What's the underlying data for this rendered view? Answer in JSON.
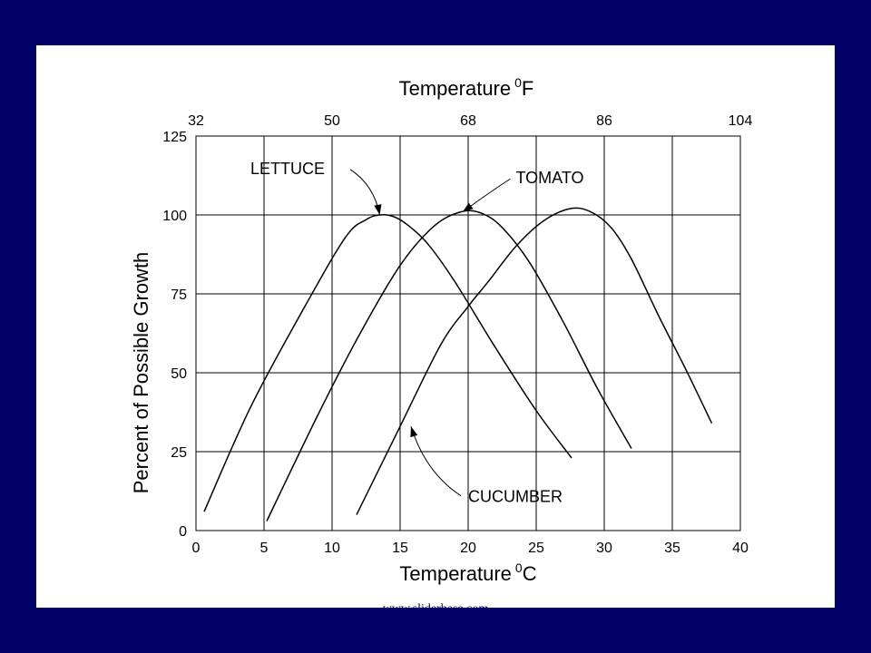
{
  "colors": {
    "background": "#000066",
    "plot_background": "#ffffff",
    "line": "#000000"
  },
  "watermark": "www.sliderbase.com",
  "chart_data": {
    "type": "line",
    "xlabel_bottom": "Temperature",
    "xlabel_bottom_unit_sup": "0",
    "xlabel_bottom_unit": "C",
    "xlabel_top": "Temperature",
    "xlabel_top_unit_sup": "0",
    "xlabel_top_unit": "F",
    "ylabel": "Percent of Possible Growth",
    "xlim": [
      0,
      40
    ],
    "ylim": [
      0,
      125
    ],
    "x_ticks": [
      0,
      5,
      10,
      15,
      20,
      25,
      30,
      35,
      40
    ],
    "y_ticks": [
      0,
      25,
      50,
      75,
      100,
      125
    ],
    "top_ticks": [
      {
        "label": "32",
        "celsius": 0
      },
      {
        "label": "50",
        "celsius": 10
      },
      {
        "label": "68",
        "celsius": 20
      },
      {
        "label": "86",
        "celsius": 30
      },
      {
        "label": "104",
        "celsius": 40
      }
    ],
    "grid": true,
    "series": [
      {
        "name": "LETTUCE",
        "x": [
          0.6,
          4,
          8,
          11,
          12.5,
          13.5,
          14.5,
          15.5,
          17,
          19,
          22,
          25,
          27.6
        ],
        "y": [
          6,
          39,
          71,
          93,
          98.5,
          100,
          99.5,
          97,
          91,
          79,
          58,
          38,
          23
        ]
      },
      {
        "name": "TOMATO",
        "x": [
          5.2,
          9,
          12,
          15,
          17.5,
          19.5,
          21,
          22.5,
          24.5,
          27,
          29.5,
          32
        ],
        "y": [
          3,
          37,
          62,
          84,
          96.5,
          101,
          100.5,
          96,
          85,
          66,
          45,
          26
        ]
      },
      {
        "name": "CUCUMBER",
        "x": [
          11.8,
          15,
          18,
          20,
          21.5,
          23.5,
          25.5,
          27.5,
          29,
          30.5,
          32,
          34,
          36,
          37.9
        ],
        "y": [
          5,
          33,
          59,
          71,
          79,
          90,
          98,
          102,
          101,
          96,
          86,
          68,
          51,
          34
        ]
      }
    ],
    "annotations": [
      {
        "text": "LETTUCE",
        "label_x": 4,
        "label_y": 115,
        "target_x": 13.5,
        "target_y": 100
      },
      {
        "text": "TOMATO",
        "label_x": 23.5,
        "label_y": 112,
        "target_x": 19.6,
        "target_y": 101
      },
      {
        "text": "CUCUMBER",
        "label_x": 20,
        "label_y": 11,
        "target_x": 15.8,
        "target_y": 33
      }
    ]
  }
}
